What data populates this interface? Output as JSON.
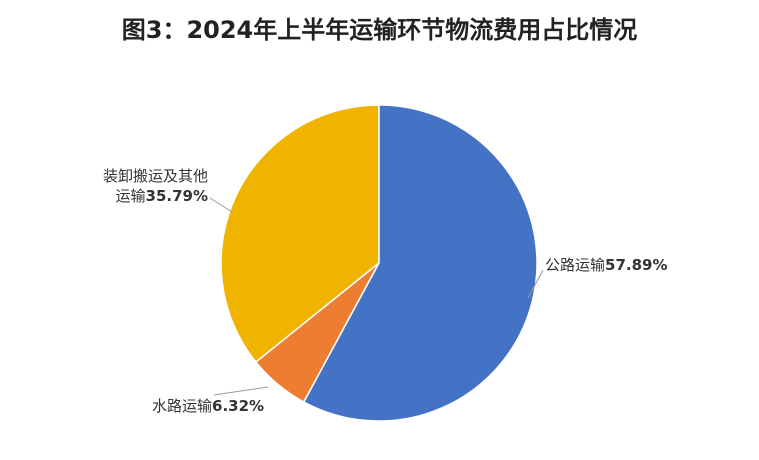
{
  "chart_data": {
    "type": "pie",
    "title": "图3：2024年上半年运输环节物流费用占比情况",
    "categories": [
      "公路运输",
      "水路运输",
      "装卸搬运及其他运输"
    ],
    "values": [
      57.89,
      6.32,
      35.79
    ],
    "value_labels": [
      "57.89%",
      "6.32%",
      "35.79%"
    ],
    "colors": [
      "#4472c4",
      "#ed7d31",
      "#f0b400"
    ]
  }
}
